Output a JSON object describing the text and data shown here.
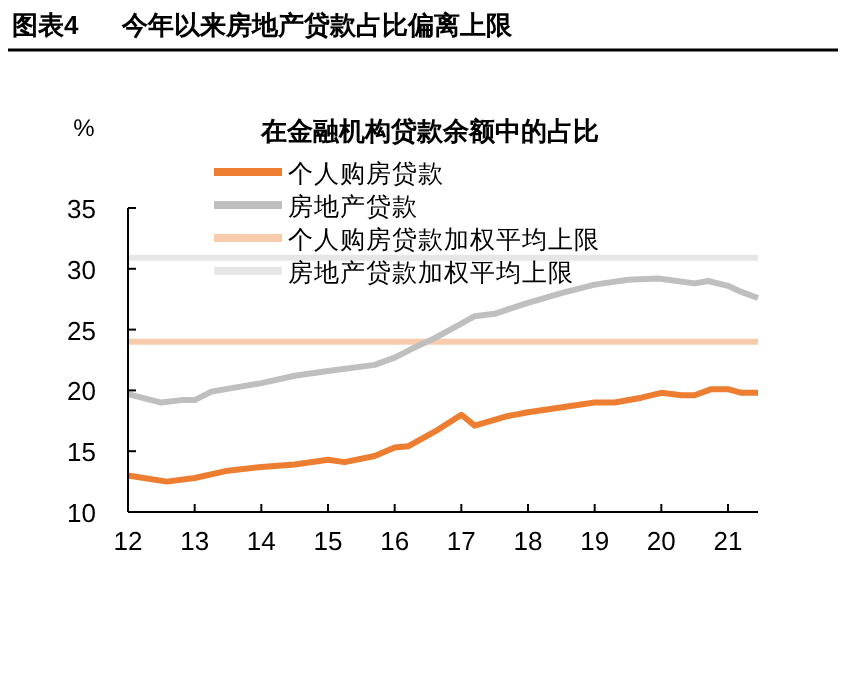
{
  "chart_data": {
    "type": "line",
    "title": "图表4      今年以来房地产贷款占比偏离上限",
    "subtitle": "在金融机构贷款余额中的占比",
    "ylabel": "%",
    "xlim": [
      12,
      21.45
    ],
    "xticks": [
      12,
      13,
      14,
      15,
      16,
      17,
      18,
      19,
      20,
      21
    ],
    "ylim": [
      10,
      35
    ],
    "yticks": [
      10,
      15,
      20,
      25,
      30,
      35
    ],
    "legend": "top left",
    "grid": false,
    "series": [
      {
        "name": "个人购房贷款",
        "color": "#ed7d31",
        "x": [
          12,
          12.58,
          13,
          13.5,
          14,
          14.5,
          15,
          15.25,
          15.7,
          16,
          16.2,
          16.6,
          17,
          17.2,
          17.7,
          18,
          19,
          19.3,
          19.7,
          20,
          20.3,
          20.5,
          20.75,
          21,
          21.2,
          21.45
        ],
        "values": [
          13.0,
          12.5,
          12.8,
          13.4,
          13.7,
          13.9,
          14.3,
          14.1,
          14.6,
          15.3,
          15.4,
          16.6,
          18.0,
          17.1,
          17.9,
          18.2,
          19.0,
          19.0,
          19.4,
          19.8,
          19.6,
          19.6,
          20.1,
          20.1,
          19.8,
          19.8
        ]
      },
      {
        "name": "房地产贷款",
        "color": "#bfbfbf",
        "x": [
          12,
          12.5,
          12.8,
          13,
          13.25,
          14,
          14.5,
          15,
          15.7,
          16,
          16.25,
          16.6,
          17,
          17.2,
          17.5,
          18,
          18.5,
          19,
          19.5,
          19.95,
          20.5,
          20.7,
          21,
          21.2,
          21.45
        ],
        "values": [
          19.7,
          19.0,
          19.2,
          19.2,
          19.9,
          20.6,
          21.2,
          21.6,
          22.1,
          22.7,
          23.4,
          24.3,
          25.5,
          26.1,
          26.3,
          27.2,
          28.0,
          28.7,
          29.1,
          29.2,
          28.8,
          29.0,
          28.6,
          28.1,
          27.6
        ]
      },
      {
        "name": "个人购房贷款加权平均上限",
        "color": "#f8cbad",
        "x": [
          12,
          21.45
        ],
        "values": [
          24,
          24
        ]
      },
      {
        "name": "房地产贷款加权平均上限",
        "color": "#e7e6e6",
        "x": [
          12,
          21.45
        ],
        "values": [
          30.9,
          30.9
        ]
      }
    ]
  }
}
